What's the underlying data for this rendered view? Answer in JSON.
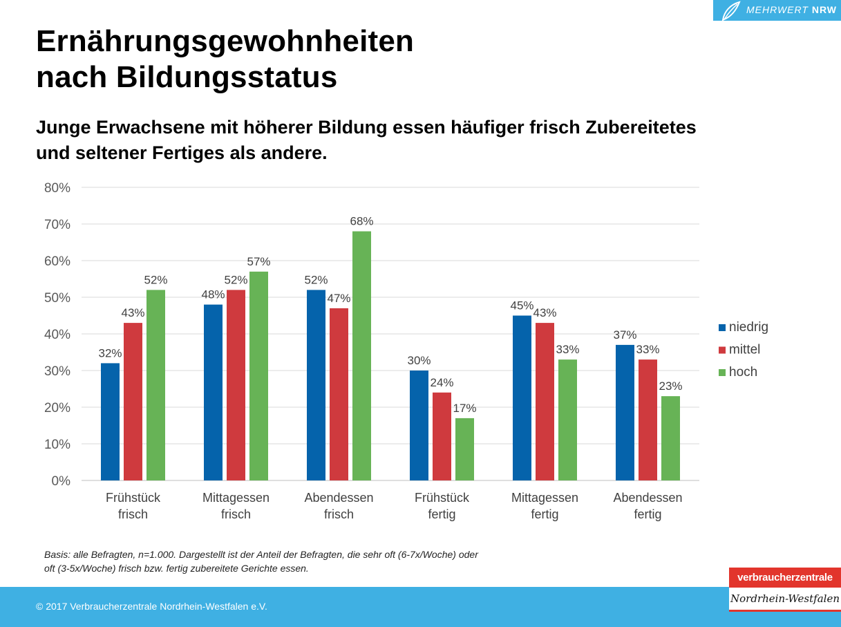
{
  "header": {
    "title_line1": "Ernährungsgewohnheiten",
    "title_line2": "nach Bildungsstatus",
    "subtitle_line1": "Junge Erwachsene mit höherer Bildung essen häufiger frisch Zubereitetes",
    "subtitle_line2": "und seltener Fertiges als andere."
  },
  "badge": {
    "text_italic": "MEHRWERT",
    "text_bold": "NRW"
  },
  "chart_data": {
    "type": "bar",
    "categories": [
      [
        "Frühstück",
        "frisch"
      ],
      [
        "Mittagessen",
        "frisch"
      ],
      [
        "Abendessen",
        "frisch"
      ],
      [
        "Frühstück",
        "fertig"
      ],
      [
        "Mittagessen",
        "fertig"
      ],
      [
        "Abendessen",
        "fertig"
      ]
    ],
    "series": [
      {
        "name": "niedrig",
        "color": "#0563ab",
        "values": [
          32,
          48,
          52,
          30,
          45,
          37
        ]
      },
      {
        "name": "mittel",
        "color": "#cf3a3e",
        "values": [
          43,
          52,
          47,
          24,
          43,
          33
        ]
      },
      {
        "name": "hoch",
        "color": "#67b356",
        "values": [
          52,
          57,
          68,
          17,
          33,
          23
        ]
      }
    ],
    "value_suffix": "%",
    "ylim": [
      0,
      80
    ],
    "yticks": [
      0,
      10,
      20,
      30,
      40,
      50,
      60,
      70,
      80
    ],
    "grid": true,
    "legend": "right"
  },
  "footnote": {
    "line1": "Basis: alle Befragten, n=1.000. Dargestellt ist der Anteil der Befragten, die sehr oft (6-7x/Woche) oder",
    "line2": "oft (3-5x/Woche) frisch bzw. fertig zubereitete Gerichte essen."
  },
  "footer": {
    "copyright": "© 2017 Verbraucherzentrale Nordrhein-Westfalen e.V.",
    "logo_top": "verbraucherzentrale",
    "logo_bottom": "Nordrhein-Westfalen"
  }
}
